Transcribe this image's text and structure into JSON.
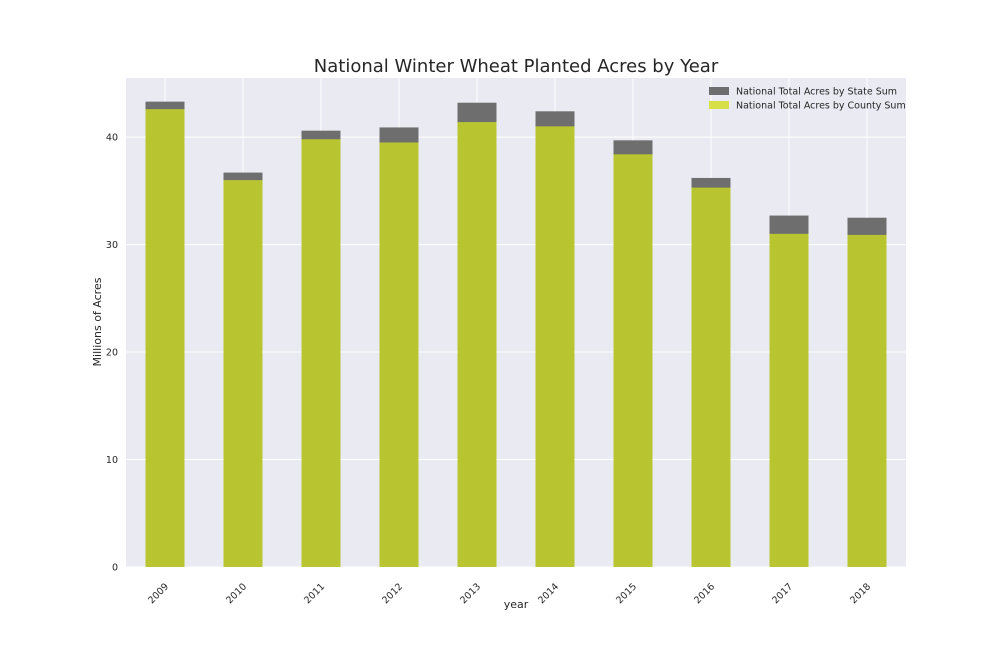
{
  "chart_data": {
    "type": "bar",
    "stacked": false,
    "overlay": true,
    "title": "National Winter Wheat Planted Acres by Year",
    "xlabel": "year",
    "ylabel": "Millions of Acres",
    "categories": [
      "2009",
      "2010",
      "2011",
      "2012",
      "2013",
      "2014",
      "2015",
      "2016",
      "2017",
      "2018"
    ],
    "series": [
      {
        "name": "National Total Acres by State Sum",
        "color": "#6e6e6e",
        "values": [
          43.3,
          36.7,
          40.6,
          40.9,
          43.2,
          42.4,
          39.7,
          36.2,
          32.7,
          32.5
        ]
      },
      {
        "name": "National Total Acres by County Sum",
        "color": "#b8c530",
        "values": [
          42.6,
          36.0,
          39.8,
          39.5,
          41.4,
          41.0,
          38.4,
          35.3,
          31.0,
          30.9
        ]
      }
    ],
    "ylim": [
      0,
      45.5
    ],
    "yticks": [
      0,
      10,
      20,
      30,
      40
    ],
    "grid": true,
    "legend": "top-right",
    "colors": {
      "plot_background": "#eaeaf2",
      "grid": "#ffffff",
      "legend_state_swatch": "#6e6e6e",
      "legend_county_swatch": "#d7e04a"
    }
  }
}
